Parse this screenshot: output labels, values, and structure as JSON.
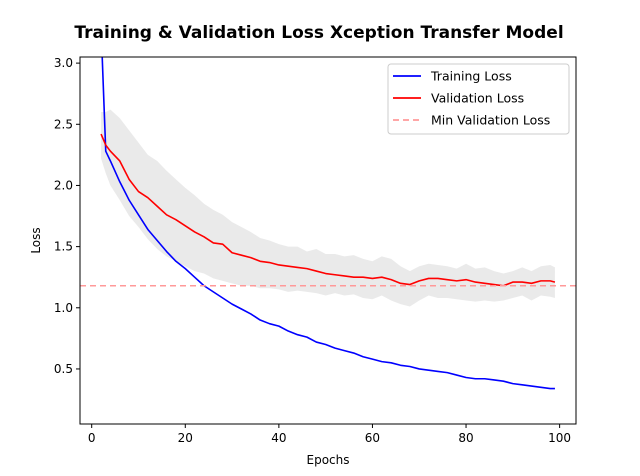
{
  "chart_data": {
    "type": "line",
    "title": "Training & Validation Loss Xception Transfer Model",
    "xlabel": "Epochs",
    "ylabel": "Loss",
    "xlim": [
      -2.5,
      103.5
    ],
    "ylim": [
      0.05,
      3.05
    ],
    "x_ticks": [
      0,
      20,
      40,
      60,
      80,
      100
    ],
    "y_ticks": [
      0.5,
      1.0,
      1.5,
      2.0,
      2.5,
      3.0
    ],
    "x_tick_labels": [
      "0",
      "20",
      "40",
      "60",
      "80",
      "100"
    ],
    "y_tick_labels": [
      "0.5",
      "1.0",
      "1.5",
      "2.0",
      "2.5",
      "3.0"
    ],
    "grid": false,
    "legend_position": "top-right",
    "series": [
      {
        "name": "Training Loss",
        "color": "#0000ff",
        "style": "solid",
        "x": [
          2,
          3,
          4,
          6,
          8,
          10,
          12,
          14,
          16,
          18,
          20,
          22,
          24,
          26,
          28,
          30,
          32,
          34,
          36,
          38,
          40,
          42,
          44,
          46,
          48,
          50,
          52,
          54,
          56,
          58,
          60,
          62,
          64,
          66,
          68,
          70,
          72,
          74,
          76,
          78,
          80,
          82,
          84,
          86,
          88,
          90,
          92,
          94,
          96,
          98,
          99
        ],
        "y": [
          3.3,
          2.28,
          2.2,
          2.03,
          1.88,
          1.76,
          1.64,
          1.55,
          1.46,
          1.38,
          1.32,
          1.25,
          1.18,
          1.13,
          1.08,
          1.03,
          0.99,
          0.95,
          0.9,
          0.87,
          0.85,
          0.81,
          0.78,
          0.76,
          0.72,
          0.7,
          0.67,
          0.65,
          0.63,
          0.6,
          0.58,
          0.56,
          0.55,
          0.53,
          0.52,
          0.5,
          0.49,
          0.48,
          0.47,
          0.45,
          0.43,
          0.42,
          0.42,
          0.41,
          0.4,
          0.38,
          0.37,
          0.36,
          0.35,
          0.34,
          0.34
        ]
      },
      {
        "name": "Validation Loss",
        "color": "#ff0000",
        "style": "solid",
        "x": [
          2,
          3,
          4,
          6,
          8,
          10,
          12,
          14,
          16,
          18,
          20,
          22,
          24,
          26,
          28,
          30,
          32,
          34,
          36,
          38,
          40,
          42,
          44,
          46,
          48,
          50,
          52,
          54,
          56,
          58,
          60,
          62,
          64,
          66,
          68,
          70,
          72,
          74,
          76,
          78,
          80,
          82,
          84,
          86,
          88,
          90,
          92,
          94,
          96,
          98,
          99
        ],
        "y": [
          2.42,
          2.33,
          2.28,
          2.2,
          2.05,
          1.95,
          1.9,
          1.83,
          1.76,
          1.72,
          1.67,
          1.62,
          1.58,
          1.53,
          1.52,
          1.45,
          1.43,
          1.41,
          1.38,
          1.37,
          1.35,
          1.34,
          1.33,
          1.32,
          1.3,
          1.28,
          1.27,
          1.26,
          1.25,
          1.25,
          1.24,
          1.25,
          1.23,
          1.2,
          1.19,
          1.22,
          1.24,
          1.24,
          1.23,
          1.22,
          1.23,
          1.21,
          1.2,
          1.19,
          1.18,
          1.21,
          1.21,
          1.2,
          1.22,
          1.22,
          1.21
        ]
      },
      {
        "name": "Min Validation Loss",
        "color": "#ff9999",
        "style": "dashed",
        "y_value": 1.18
      }
    ],
    "band": {
      "series": "Validation Loss",
      "color": "#d9d9d9",
      "x": [
        2,
        3,
        4,
        6,
        8,
        10,
        12,
        14,
        16,
        18,
        20,
        22,
        24,
        26,
        28,
        30,
        32,
        34,
        36,
        38,
        40,
        42,
        44,
        46,
        48,
        50,
        52,
        54,
        56,
        58,
        60,
        62,
        64,
        66,
        68,
        70,
        72,
        74,
        76,
        78,
        80,
        82,
        84,
        86,
        88,
        90,
        92,
        94,
        96,
        98,
        99
      ],
      "upper": [
        2.6,
        2.6,
        2.62,
        2.55,
        2.45,
        2.35,
        2.25,
        2.2,
        2.12,
        2.05,
        1.98,
        1.92,
        1.85,
        1.8,
        1.76,
        1.7,
        1.66,
        1.62,
        1.57,
        1.55,
        1.52,
        1.5,
        1.5,
        1.46,
        1.48,
        1.44,
        1.44,
        1.42,
        1.43,
        1.4,
        1.38,
        1.42,
        1.4,
        1.34,
        1.3,
        1.34,
        1.36,
        1.35,
        1.34,
        1.32,
        1.36,
        1.32,
        1.33,
        1.3,
        1.28,
        1.3,
        1.33,
        1.3,
        1.34,
        1.35,
        1.33
      ],
      "lower": [
        2.22,
        2.1,
        2.0,
        1.88,
        1.75,
        1.66,
        1.56,
        1.48,
        1.42,
        1.38,
        1.34,
        1.3,
        1.28,
        1.24,
        1.22,
        1.2,
        1.18,
        1.18,
        1.16,
        1.16,
        1.15,
        1.13,
        1.14,
        1.13,
        1.12,
        1.1,
        1.12,
        1.1,
        1.11,
        1.08,
        1.07,
        1.1,
        1.06,
        1.03,
        1.01,
        1.06,
        1.1,
        1.08,
        1.08,
        1.07,
        1.06,
        1.05,
        1.06,
        1.05,
        1.06,
        1.08,
        1.1,
        1.06,
        1.1,
        1.09,
        1.08
      ]
    }
  }
}
